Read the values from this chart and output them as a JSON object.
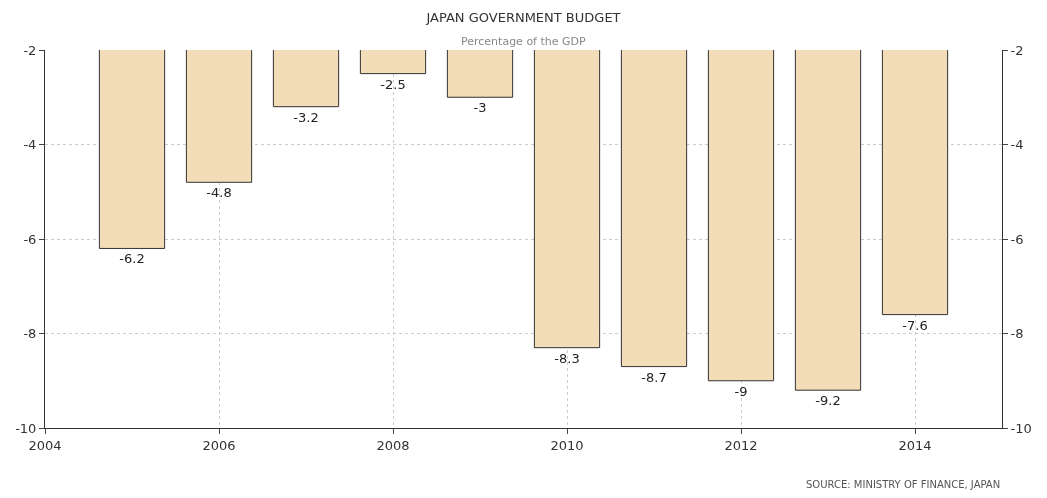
{
  "chart_data": {
    "type": "bar",
    "title": "JAPAN GOVERNMENT BUDGET",
    "subtitle": "Percentage of the GDP",
    "x": [
      2005,
      2006,
      2007,
      2008,
      2009,
      2010,
      2011,
      2012,
      2013,
      2014
    ],
    "values": [
      -6.2,
      -4.8,
      -3.2,
      -2.5,
      -3,
      -8.3,
      -8.7,
      -9,
      -9.2,
      -7.6
    ],
    "color": "#f3ddb8",
    "data_labels": true,
    "xlim": [
      2004,
      2015
    ],
    "xticks": [
      2004,
      2006,
      2008,
      2010,
      2012,
      2014
    ],
    "ylim": [
      -10,
      -2
    ],
    "yticks": [
      -10,
      -8,
      -6,
      -4,
      -2
    ],
    "y2lim": [
      -10,
      -2
    ],
    "y2ticks": [
      -10,
      -8,
      -6,
      -4,
      -2
    ],
    "grid": true,
    "annotations": [
      "SOURCE: MINISTRY OF FINANCE, JAPAN"
    ]
  }
}
